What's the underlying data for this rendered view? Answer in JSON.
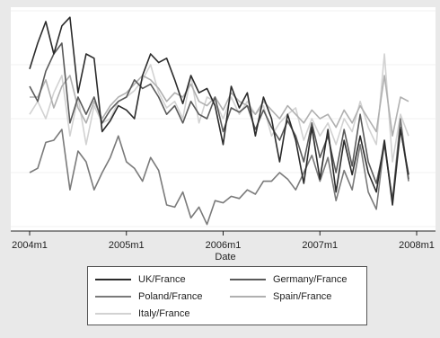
{
  "chart_data": {
    "type": "line",
    "xlabel": "Date",
    "ylabel": "",
    "x": [
      "2004m1",
      "2004m2",
      "2004m3",
      "2004m4",
      "2004m5",
      "2004m6",
      "2004m7",
      "2004m8",
      "2004m9",
      "2004m10",
      "2004m11",
      "2004m12",
      "2005m1",
      "2005m2",
      "2005m3",
      "2005m4",
      "2005m5",
      "2005m6",
      "2005m7",
      "2005m8",
      "2005m9",
      "2005m10",
      "2005m11",
      "2005m12",
      "2006m1",
      "2006m2",
      "2006m3",
      "2006m4",
      "2006m5",
      "2006m6",
      "2006m7",
      "2006m8",
      "2006m9",
      "2006m10",
      "2006m11",
      "2006m12",
      "2007m1",
      "2007m2",
      "2007m3",
      "2007m4",
      "2007m5",
      "2007m6",
      "2007m7",
      "2007m8",
      "2007m9",
      "2007m10",
      "2007m11",
      "2007m12"
    ],
    "x_ticks": [
      "2004m1",
      "2005m1",
      "2006m1",
      "2007m1",
      "2008m1"
    ],
    "x_tick_positions": [
      0,
      12,
      24,
      36,
      48
    ],
    "ylim": [
      0,
      100
    ],
    "grid": "horizontal",
    "legend_position": "bottom",
    "series": [
      {
        "name": "UK/France",
        "color": "#2b2b2b",
        "values": [
          73,
          85,
          95,
          80,
          93,
          97,
          62,
          80,
          78,
          44,
          49,
          56,
          54,
          50,
          70,
          80,
          76,
          78,
          68,
          57,
          70,
          62,
          64,
          56,
          38,
          65,
          55,
          62,
          42,
          60,
          50,
          30,
          52,
          40,
          20,
          46,
          22,
          45,
          16,
          40,
          24,
          42,
          25,
          16,
          40,
          10,
          45,
          24
        ]
      },
      {
        "name": "Germany/France",
        "color": "#5a5a5a",
        "values": [
          65,
          58,
          72,
          80,
          85,
          48,
          60,
          52,
          60,
          48,
          54,
          58,
          60,
          68,
          64,
          66,
          60,
          52,
          56,
          48,
          58,
          52,
          50,
          60,
          44,
          55,
          53,
          56,
          45,
          54,
          46,
          40,
          49,
          42,
          30,
          48,
          32,
          42,
          25,
          45,
          28,
          52,
          30,
          20,
          38,
          12,
          46,
          22
        ]
      },
      {
        "name": "Poland/France",
        "color": "#7a7a7a",
        "values": [
          25,
          27,
          39,
          40,
          45,
          17,
          35,
          30,
          17,
          25,
          32,
          42,
          30,
          27,
          21,
          32,
          26,
          10,
          9,
          16,
          4,
          9,
          1,
          12,
          11,
          14,
          13,
          17,
          15,
          21,
          21,
          25,
          22,
          17,
          25,
          33,
          21,
          32,
          12,
          26,
          17,
          38,
          16,
          8,
          39,
          12,
          50,
          21
        ]
      },
      {
        "name": "Spain/France",
        "color": "#b0b0b0",
        "values": [
          60,
          60,
          68,
          55,
          65,
          70,
          55,
          48,
          58,
          50,
          56,
          60,
          62,
          66,
          70,
          68,
          64,
          58,
          62,
          60,
          66,
          58,
          56,
          60,
          54,
          62,
          58,
          56,
          52,
          58,
          54,
          50,
          56,
          52,
          48,
          54,
          50,
          52,
          46,
          54,
          48,
          56,
          50,
          44,
          70,
          42,
          60,
          58
        ]
      },
      {
        "name": "Italy/France",
        "color": "#d2d2d2",
        "values": [
          52,
          58,
          50,
          62,
          70,
          42,
          60,
          38,
          56,
          48,
          50,
          58,
          60,
          63,
          68,
          75,
          62,
          55,
          58,
          50,
          70,
          48,
          60,
          58,
          50,
          60,
          52,
          58,
          52,
          56,
          42,
          48,
          52,
          55,
          40,
          50,
          42,
          48,
          38,
          50,
          44,
          58,
          46,
          38,
          80,
          30,
          52,
          42
        ]
      }
    ]
  }
}
